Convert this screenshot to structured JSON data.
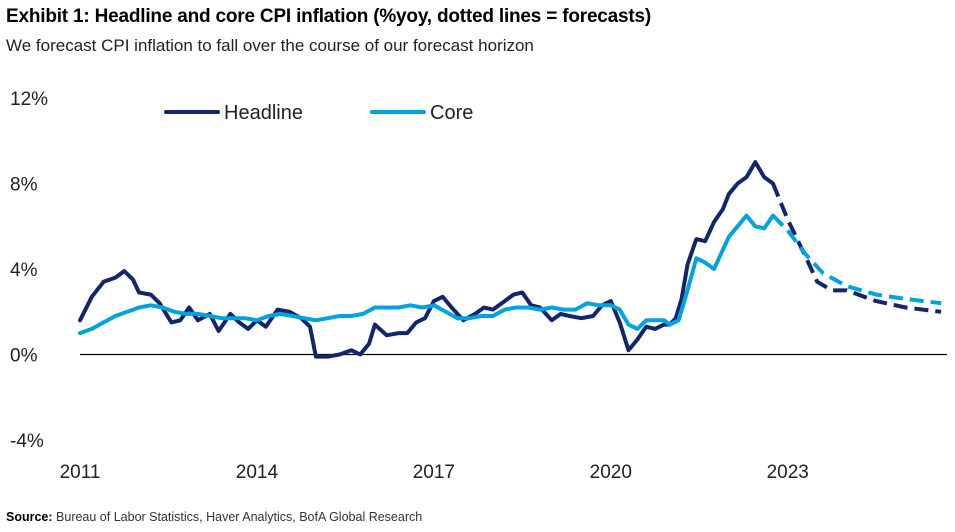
{
  "chart_data": {
    "type": "line",
    "title": "Exhibit 1: Headline and core CPI inflation (%yoy, dotted lines = forecasts)",
    "subtitle": "We forecast CPI inflation to fall over the course of our forecast horizon",
    "source_label": "Source:",
    "source_text": "Bureau of Labor Statistics, Haver Analytics, BofA Global Research",
    "xlim": [
      2011,
      2025.7
    ],
    "ylim": [
      -4,
      12
    ],
    "y_ticks": [
      {
        "value": 12,
        "label": "12%"
      },
      {
        "value": 8,
        "label": "8%"
      },
      {
        "value": 4,
        "label": "4%"
      },
      {
        "value": 0,
        "label": "0%"
      },
      {
        "value": -4,
        "label": "-4%"
      }
    ],
    "x_ticks": [
      {
        "value": 2011,
        "label": "2011"
      },
      {
        "value": 2014,
        "label": "2014"
      },
      {
        "value": 2017,
        "label": "2017"
      },
      {
        "value": 2020,
        "label": "2020"
      },
      {
        "value": 2023,
        "label": "2023"
      }
    ],
    "legend_position": "top-left",
    "grid": false,
    "series": [
      {
        "name": "Headline",
        "color": "#13266b",
        "points": [
          [
            2011.0,
            1.6
          ],
          [
            2011.2,
            2.7
          ],
          [
            2011.4,
            3.4
          ],
          [
            2011.6,
            3.6
          ],
          [
            2011.75,
            3.9
          ],
          [
            2011.9,
            3.5
          ],
          [
            2012.0,
            2.9
          ],
          [
            2012.2,
            2.8
          ],
          [
            2012.35,
            2.4
          ],
          [
            2012.55,
            1.5
          ],
          [
            2012.7,
            1.6
          ],
          [
            2012.85,
            2.2
          ],
          [
            2013.0,
            1.6
          ],
          [
            2013.2,
            1.9
          ],
          [
            2013.35,
            1.1
          ],
          [
            2013.55,
            1.9
          ],
          [
            2013.7,
            1.5
          ],
          [
            2013.85,
            1.2
          ],
          [
            2014.0,
            1.6
          ],
          [
            2014.15,
            1.3
          ],
          [
            2014.35,
            2.1
          ],
          [
            2014.55,
            2.0
          ],
          [
            2014.75,
            1.7
          ],
          [
            2014.9,
            1.3
          ],
          [
            2015.0,
            -0.1
          ],
          [
            2015.2,
            -0.1
          ],
          [
            2015.4,
            0.0
          ],
          [
            2015.6,
            0.2
          ],
          [
            2015.75,
            0.0
          ],
          [
            2015.9,
            0.5
          ],
          [
            2016.0,
            1.4
          ],
          [
            2016.2,
            0.9
          ],
          [
            2016.4,
            1.0
          ],
          [
            2016.55,
            1.0
          ],
          [
            2016.7,
            1.5
          ],
          [
            2016.85,
            1.7
          ],
          [
            2017.0,
            2.5
          ],
          [
            2017.15,
            2.7
          ],
          [
            2017.3,
            2.2
          ],
          [
            2017.5,
            1.6
          ],
          [
            2017.7,
            1.9
          ],
          [
            2017.85,
            2.2
          ],
          [
            2018.0,
            2.1
          ],
          [
            2018.2,
            2.5
          ],
          [
            2018.35,
            2.8
          ],
          [
            2018.5,
            2.9
          ],
          [
            2018.65,
            2.3
          ],
          [
            2018.8,
            2.2
          ],
          [
            2019.0,
            1.6
          ],
          [
            2019.15,
            1.9
          ],
          [
            2019.3,
            1.8
          ],
          [
            2019.5,
            1.7
          ],
          [
            2019.7,
            1.8
          ],
          [
            2019.85,
            2.3
          ],
          [
            2020.0,
            2.5
          ],
          [
            2020.15,
            1.5
          ],
          [
            2020.3,
            0.2
          ],
          [
            2020.45,
            0.7
          ],
          [
            2020.6,
            1.3
          ],
          [
            2020.75,
            1.2
          ],
          [
            2020.9,
            1.4
          ],
          [
            2021.0,
            1.4
          ],
          [
            2021.1,
            1.7
          ],
          [
            2021.2,
            2.6
          ],
          [
            2021.3,
            4.2
          ],
          [
            2021.45,
            5.4
          ],
          [
            2021.6,
            5.3
          ],
          [
            2021.75,
            6.2
          ],
          [
            2021.9,
            6.8
          ],
          [
            2022.0,
            7.5
          ],
          [
            2022.15,
            8.0
          ],
          [
            2022.3,
            8.3
          ],
          [
            2022.45,
            9.0
          ],
          [
            2022.6,
            8.3
          ],
          [
            2022.75,
            8.0
          ]
        ]
      },
      {
        "name": "Headline (forecast)",
        "color": "#13266b",
        "dashed": true,
        "points": [
          [
            2022.75,
            8.0
          ],
          [
            2023.0,
            6.3
          ],
          [
            2023.3,
            4.6
          ],
          [
            2023.5,
            3.4
          ],
          [
            2023.75,
            3.0
          ],
          [
            2024.0,
            3.0
          ],
          [
            2024.5,
            2.5
          ],
          [
            2025.0,
            2.2
          ],
          [
            2025.6,
            2.0
          ]
        ]
      },
      {
        "name": "Core",
        "color": "#00a3e0",
        "points": [
          [
            2011.0,
            1.0
          ],
          [
            2011.2,
            1.2
          ],
          [
            2011.4,
            1.5
          ],
          [
            2011.6,
            1.8
          ],
          [
            2011.8,
            2.0
          ],
          [
            2012.0,
            2.2
          ],
          [
            2012.2,
            2.3
          ],
          [
            2012.4,
            2.2
          ],
          [
            2012.6,
            2.0
          ],
          [
            2012.8,
            1.9
          ],
          [
            2013.0,
            1.9
          ],
          [
            2013.2,
            1.8
          ],
          [
            2013.4,
            1.7
          ],
          [
            2013.6,
            1.7
          ],
          [
            2013.8,
            1.7
          ],
          [
            2014.0,
            1.6
          ],
          [
            2014.2,
            1.8
          ],
          [
            2014.4,
            1.9
          ],
          [
            2014.6,
            1.8
          ],
          [
            2014.8,
            1.7
          ],
          [
            2015.0,
            1.6
          ],
          [
            2015.2,
            1.7
          ],
          [
            2015.4,
            1.8
          ],
          [
            2015.6,
            1.8
          ],
          [
            2015.8,
            1.9
          ],
          [
            2016.0,
            2.2
          ],
          [
            2016.2,
            2.2
          ],
          [
            2016.4,
            2.2
          ],
          [
            2016.6,
            2.3
          ],
          [
            2016.8,
            2.2
          ],
          [
            2017.0,
            2.3
          ],
          [
            2017.2,
            2.0
          ],
          [
            2017.4,
            1.7
          ],
          [
            2017.6,
            1.7
          ],
          [
            2017.8,
            1.8
          ],
          [
            2018.0,
            1.8
          ],
          [
            2018.2,
            2.1
          ],
          [
            2018.4,
            2.2
          ],
          [
            2018.6,
            2.2
          ],
          [
            2018.8,
            2.1
          ],
          [
            2019.0,
            2.2
          ],
          [
            2019.2,
            2.1
          ],
          [
            2019.4,
            2.1
          ],
          [
            2019.6,
            2.4
          ],
          [
            2019.8,
            2.3
          ],
          [
            2020.0,
            2.3
          ],
          [
            2020.15,
            2.1
          ],
          [
            2020.3,
            1.4
          ],
          [
            2020.45,
            1.2
          ],
          [
            2020.6,
            1.6
          ],
          [
            2020.75,
            1.6
          ],
          [
            2020.9,
            1.6
          ],
          [
            2021.0,
            1.4
          ],
          [
            2021.15,
            1.6
          ],
          [
            2021.3,
            3.0
          ],
          [
            2021.45,
            4.5
          ],
          [
            2021.6,
            4.3
          ],
          [
            2021.75,
            4.0
          ],
          [
            2021.9,
            4.9
          ],
          [
            2022.0,
            5.5
          ],
          [
            2022.15,
            6.0
          ],
          [
            2022.3,
            6.5
          ],
          [
            2022.45,
            6.0
          ],
          [
            2022.6,
            5.9
          ],
          [
            2022.75,
            6.5
          ]
        ]
      },
      {
        "name": "Core (forecast)",
        "color": "#00a3e0",
        "dashed": true,
        "points": [
          [
            2022.75,
            6.5
          ],
          [
            2023.0,
            5.8
          ],
          [
            2023.3,
            4.7
          ],
          [
            2023.6,
            3.8
          ],
          [
            2024.0,
            3.2
          ],
          [
            2024.5,
            2.8
          ],
          [
            2025.0,
            2.6
          ],
          [
            2025.6,
            2.4
          ]
        ]
      }
    ]
  }
}
